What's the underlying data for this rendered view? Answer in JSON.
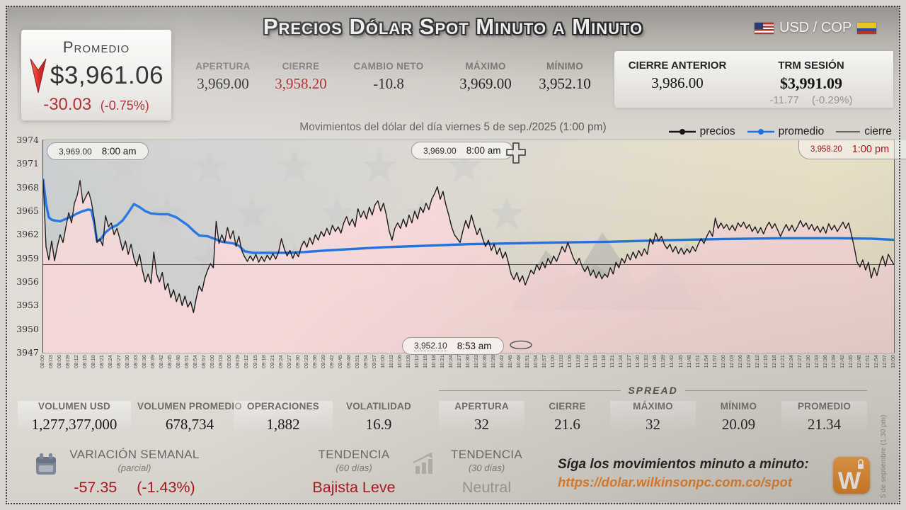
{
  "colors": {
    "accent_red": "#a8161d",
    "promedio_blue": "#1f72e0",
    "price_black": "#161616",
    "area_pink": "#f8d8d8",
    "orange": "#e87a1e"
  },
  "header": {
    "title": "Precios Dólar Spot Minuto a Minuto",
    "currency_pair": "USD / COP",
    "promedio_card": {
      "label": "Promedio",
      "value": "$3,961.06",
      "change": "-30.03",
      "change_pct": "(-0.75%)"
    },
    "stats": [
      {
        "label": "APERTURA",
        "value": "3,969.00"
      },
      {
        "label": "CIERRE",
        "value": "3,958.20"
      },
      {
        "label": "CAMBIO NETO",
        "value": "-10.8"
      },
      {
        "label": "MÁXIMO",
        "value": "3,969.00"
      },
      {
        "label": "MÍNIMO",
        "value": "3,952.10"
      }
    ],
    "highlight_stats": {
      "cierre_anterior": {
        "label": "CIERRE ANTERIOR",
        "value": "3,986.00"
      },
      "trm": {
        "label": "TRM SESIÓN",
        "value": "$3,991.09",
        "sub_change": "-11.77",
        "sub_pct": "(-0.29%)"
      }
    }
  },
  "chart": {
    "subtitle": "Movimientos del dólar del día viernes 5 de sep./2025 (1:00 pm)",
    "legend": [
      {
        "label": "precios"
      },
      {
        "label": "promedio"
      },
      {
        "label": "cierre"
      }
    ]
  },
  "chart_data": {
    "type": "line",
    "title": "Movimientos del dólar del día viernes 5 de sep./2025 (1:00 pm)",
    "ylim": [
      3947,
      3974
    ],
    "y_ticks": [
      3974,
      3971,
      3968,
      3965,
      3962,
      3959,
      3956,
      3953,
      3950,
      3947
    ],
    "x_start": "08:00",
    "x_end": "13:00",
    "x_tick_step_minutes": 3,
    "x_ticks": [
      "08:00",
      "08:03",
      "08:06",
      "08:09",
      "08:12",
      "08:15",
      "08:18",
      "08:21",
      "08:24",
      "08:27",
      "08:30",
      "08:33",
      "08:36",
      "08:39",
      "08:42",
      "08:45",
      "08:48",
      "08:51",
      "08:54",
      "08:57",
      "09:00",
      "09:03",
      "09:06",
      "09:09",
      "09:12",
      "09:15",
      "09:18",
      "09:21",
      "09:24",
      "09:27",
      "09:30",
      "09:33",
      "09:36",
      "09:39",
      "09:42",
      "09:45",
      "09:48",
      "09:51",
      "09:54",
      "09:57",
      "10:00",
      "10:03",
      "10:06",
      "10:09",
      "10:12",
      "10:15",
      "10:18",
      "10:21",
      "10:24",
      "10:27",
      "10:30",
      "10:33",
      "10:36",
      "10:39",
      "10:42",
      "10:45",
      "10:48",
      "10:51",
      "10:54",
      "10:57",
      "11:00",
      "11:03",
      "11:06",
      "11:09",
      "11:12",
      "11:15",
      "11:18",
      "11:21",
      "11:24",
      "11:27",
      "11:30",
      "11:33",
      "11:36",
      "11:39",
      "11:42",
      "11:45",
      "11:48",
      "11:51",
      "11:54",
      "11:57",
      "12:00",
      "12:03",
      "12:06",
      "12:09",
      "12:12",
      "12:15",
      "12:18",
      "12:21",
      "12:24",
      "12:27",
      "12:30",
      "12:33",
      "12:36",
      "12:39",
      "12:42",
      "12:45",
      "12:48",
      "12:51",
      "12:54",
      "12:57",
      "13:00"
    ],
    "series": [
      {
        "name": "precios",
        "color": "#161616",
        "values_per_minute": [
          3969.0,
          3960.5,
          3958.8,
          3961.2,
          3958.7,
          3960.5,
          3962.0,
          3961.0,
          3963.0,
          3964.8,
          3963.5,
          3966.0,
          3967.0,
          3968.9,
          3966.0,
          3966.8,
          3967.5,
          3966.2,
          3964.0,
          3961.0,
          3961.5,
          3960.6,
          3964.4,
          3963.0,
          3963.5,
          3962.0,
          3962.8,
          3961.5,
          3960.0,
          3961.2,
          3959.5,
          3960.8,
          3959.0,
          3958.0,
          3959.5,
          3957.5,
          3956.0,
          3957.0,
          3955.8,
          3959.8,
          3957.0,
          3956.0,
          3957.2,
          3955.0,
          3955.8,
          3954.0,
          3955.0,
          3953.5,
          3954.5,
          3953.0,
          3954.2,
          3952.8,
          3953.5,
          3952.1,
          3954.0,
          3955.5,
          3954.8,
          3956.5,
          3957.5,
          3958.3,
          3957.8,
          3963.7,
          3960.9,
          3962.0,
          3961.0,
          3962.9,
          3961.5,
          3962.5,
          3960.5,
          3961.8,
          3960.0,
          3959.2,
          3958.6,
          3959.3,
          3958.7,
          3959.5,
          3958.5,
          3959.2,
          3958.6,
          3959.4,
          3958.8,
          3959.6,
          3958.9,
          3959.8,
          3961.5,
          3960.2,
          3959.3,
          3960.0,
          3959.0,
          3959.8,
          3959.2,
          3960.5,
          3961.2,
          3960.4,
          3961.6,
          3960.8,
          3962.0,
          3961.3,
          3962.4,
          3961.8,
          3962.8,
          3962.0,
          3963.2,
          3962.4,
          3963.0,
          3962.2,
          3963.5,
          3964.3,
          3963.2,
          3964.0,
          3963.0,
          3965.3,
          3964.2,
          3965.0,
          3964.0,
          3965.5,
          3964.5,
          3965.8,
          3966.3,
          3965.0,
          3966.0,
          3964.5,
          3962.5,
          3961.3,
          3962.8,
          3963.5,
          3962.8,
          3964.0,
          3963.0,
          3964.5,
          3963.5,
          3965.0,
          3964.0,
          3965.5,
          3964.8,
          3966.0,
          3965.2,
          3966.5,
          3967.2,
          3968.1,
          3966.5,
          3967.5,
          3965.8,
          3964.5,
          3963.0,
          3962.0,
          3961.5,
          3961.0,
          3962.5,
          3963.8,
          3962.8,
          3964.5,
          3963.2,
          3962.0,
          3962.8,
          3961.5,
          3960.5,
          3961.3,
          3960.0,
          3960.8,
          3959.5,
          3960.3,
          3959.0,
          3959.8,
          3958.5,
          3957.0,
          3956.3,
          3957.2,
          3956.0,
          3956.8,
          3955.6,
          3956.5,
          3957.5,
          3957.0,
          3958.2,
          3957.5,
          3958.5,
          3957.8,
          3959.0,
          3958.3,
          3959.3,
          3958.6,
          3959.5,
          3960.5,
          3959.8,
          3961.0,
          3960.0,
          3959.0,
          3958.3,
          3959.0,
          3958.0,
          3957.3,
          3958.0,
          3956.8,
          3957.5,
          3956.5,
          3957.3,
          3956.4,
          3957.0,
          3956.6,
          3957.8,
          3957.0,
          3958.5,
          3957.8,
          3959.0,
          3958.4,
          3959.5,
          3958.8,
          3959.8,
          3959.0,
          3960.0,
          3959.3,
          3960.2,
          3959.5,
          3961.5,
          3960.8,
          3962.2,
          3961.2,
          3961.8,
          3960.8,
          3960.2,
          3960.8,
          3959.8,
          3960.5,
          3959.6,
          3960.3,
          3959.5,
          3960.2,
          3959.7,
          3960.5,
          3959.9,
          3960.8,
          3961.5,
          3960.9,
          3961.8,
          3962.5,
          3961.8,
          3964.1,
          3962.8,
          3963.5,
          3962.8,
          3963.3,
          3962.6,
          3963.2,
          3962.5,
          3963.5,
          3963.0,
          3963.6,
          3962.8,
          3963.3,
          3962.4,
          3963.0,
          3962.2,
          3962.9,
          3962.1,
          3963.0,
          3963.6,
          3962.8,
          3963.4,
          3962.6,
          3961.8,
          3962.6,
          3963.3,
          3962.5,
          3963.2,
          3962.4,
          3963.0,
          3963.8,
          3963.0,
          3963.5,
          3962.7,
          3963.3,
          3962.5,
          3963.1,
          3962.3,
          3963.0,
          3962.2,
          3963.4,
          3962.6,
          3963.2,
          3962.4,
          3963.0,
          3963.6,
          3962.8,
          3963.5,
          3962.0,
          3960.4,
          3958.5,
          3957.9,
          3958.8,
          3957.5,
          3958.5,
          3956.5,
          3957.8,
          3956.8,
          3958.3,
          3959.3,
          3958.0,
          3959.5,
          3958.8,
          3958.2
        ]
      },
      {
        "name": "promedio",
        "color": "#1f72e0",
        "points": [
          [
            0,
            3969.0
          ],
          [
            1,
            3966.0
          ],
          [
            2,
            3964.2
          ],
          [
            3,
            3963.9
          ],
          [
            4,
            3963.8
          ],
          [
            6,
            3963.7
          ],
          [
            8,
            3964.0
          ],
          [
            10,
            3964.3
          ],
          [
            12,
            3964.7
          ],
          [
            14,
            3965.0
          ],
          [
            16,
            3965.2
          ],
          [
            17,
            3965.1
          ],
          [
            18,
            3963.5
          ],
          [
            19,
            3961.2
          ],
          [
            20,
            3961.3
          ],
          [
            21,
            3961.8
          ],
          [
            22,
            3962.3
          ],
          [
            24,
            3962.9
          ],
          [
            26,
            3963.2
          ],
          [
            28,
            3963.8
          ],
          [
            30,
            3964.8
          ],
          [
            32,
            3965.9
          ],
          [
            34,
            3965.5
          ],
          [
            36,
            3965.0
          ],
          [
            38,
            3964.7
          ],
          [
            41,
            3964.6
          ],
          [
            44,
            3964.6
          ],
          [
            47,
            3964.2
          ],
          [
            49,
            3963.7
          ],
          [
            51,
            3963.2
          ],
          [
            53,
            3962.5
          ],
          [
            55,
            3961.9
          ],
          [
            58,
            3961.8
          ],
          [
            61,
            3961.4
          ],
          [
            63,
            3961.1
          ],
          [
            65,
            3961.0
          ],
          [
            67,
            3960.9
          ],
          [
            69,
            3960.6
          ],
          [
            71,
            3959.9
          ],
          [
            74,
            3959.7
          ],
          [
            80,
            3959.7
          ],
          [
            86,
            3959.7
          ],
          [
            92,
            3959.8
          ],
          [
            100,
            3960.0
          ],
          [
            110,
            3960.2
          ],
          [
            120,
            3960.4
          ],
          [
            135,
            3960.6
          ],
          [
            150,
            3960.8
          ],
          [
            165,
            3960.9
          ],
          [
            180,
            3961.0
          ],
          [
            200,
            3961.1
          ],
          [
            220,
            3961.3
          ],
          [
            240,
            3961.45
          ],
          [
            260,
            3961.55
          ],
          [
            280,
            3961.55
          ],
          [
            292,
            3961.5
          ],
          [
            300,
            3961.35
          ]
        ]
      },
      {
        "name": "cierre",
        "color": "#4d4d4d",
        "value": 3958.2
      }
    ],
    "annotations": [
      {
        "role": "apertura",
        "value": "3,969.00",
        "time": "8:00 am"
      },
      {
        "role": "maximo",
        "value": "3,969.00",
        "time": "8:00 am"
      },
      {
        "role": "cierre",
        "value": "3,958.20",
        "time": "1:00 pm"
      },
      {
        "role": "minimo",
        "value": "3,952.10",
        "time": "8:53 am"
      }
    ]
  },
  "bottom_stats": [
    {
      "label": "VOLUMEN USD",
      "value": "1,277,377,000"
    },
    {
      "label": "VOLUMEN PROMEDIO",
      "value": "678,734"
    },
    {
      "label": "OPERACIONES",
      "value": "1,882"
    },
    {
      "label": "VOLATILIDAD",
      "value": "16.9"
    }
  ],
  "spread": {
    "title": "SPREAD",
    "items": [
      {
        "label": "APERTURA",
        "value": "32"
      },
      {
        "label": "CIERRE",
        "value": "21.6"
      },
      {
        "label": "MÁXIMO",
        "value": "32"
      },
      {
        "label": "MÍNIMO",
        "value": "20.09"
      },
      {
        "label": "PROMEDIO",
        "value": "21.34"
      }
    ]
  },
  "footer": {
    "variacion": {
      "label": "VARIACIÓN SEMANAL",
      "sub": "(parcial)",
      "change": "-57.35",
      "pct": "(-1.43%)"
    },
    "tendencia60": {
      "label": "TENDENCIA",
      "sub": "(60 días)",
      "value": "Bajista Leve"
    },
    "tendencia30": {
      "label": "TENDENCIA",
      "sub": "(30 días)",
      "value": "Neutral"
    },
    "cta": {
      "text": "Síga los movimientos minuto a minuto:",
      "url": "https://dolar.wilkinsonpc.com.co/spot"
    },
    "logo_letter": "W",
    "session_note": "5 de septiembre (1:30 pm)"
  }
}
